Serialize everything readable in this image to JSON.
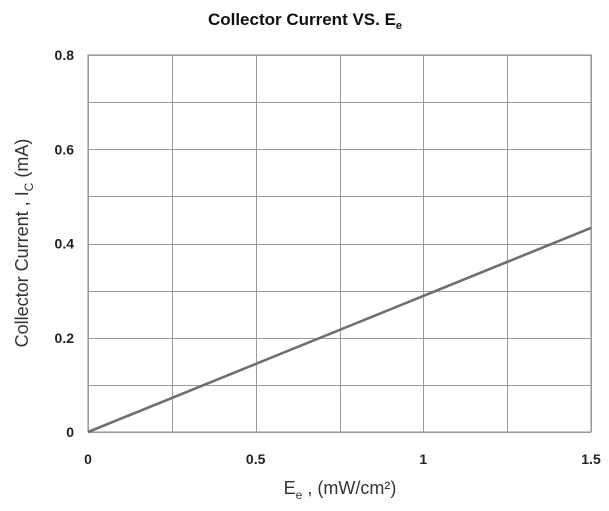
{
  "chart_data": {
    "type": "line",
    "title": {
      "main": "Collector Current VS. E",
      "sub": "e"
    },
    "xlabel": {
      "main": "E",
      "sub": "e",
      "rest": " , (mW/cm²)"
    },
    "ylabel": {
      "main": "Collector Current , I",
      "sub": "C",
      "rest": " (mA)"
    },
    "xlim": [
      0,
      1.5
    ],
    "ylim": [
      0,
      0.8
    ],
    "xticks": [
      0,
      0.5,
      1,
      1.5
    ],
    "xtick_labels": [
      "0",
      "0.5",
      "1",
      "1.5"
    ],
    "yticks": [
      0,
      0.2,
      0.4,
      0.6,
      0.8
    ],
    "ytick_labels": [
      "0",
      "0.2",
      "0.4",
      "0.6",
      "0.8"
    ],
    "x_minor_gridlines": [
      0.25,
      0.75,
      1.25
    ],
    "y_minor_gridlines": [
      0.1,
      0.3,
      0.5,
      0.7
    ],
    "grid": true,
    "legend": "none",
    "series_color": "#6f6f6f",
    "grid_color": "#9a9a9a",
    "series": [
      {
        "x": [
          0,
          1.5
        ],
        "y": [
          0,
          0.433
        ]
      }
    ]
  }
}
